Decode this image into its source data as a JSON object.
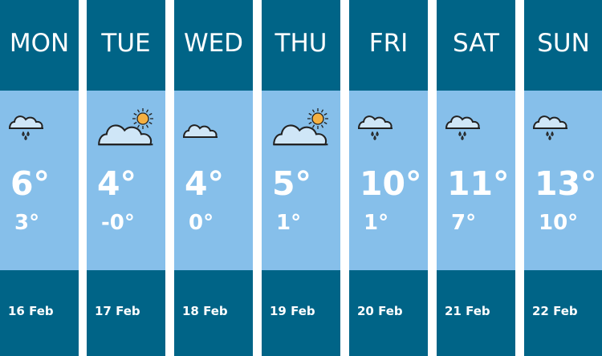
{
  "colors": {
    "header": "#006487",
    "body": "#86bfea",
    "text": "#ffffff",
    "sun": "#f5b041"
  },
  "days": [
    {
      "day": "MON",
      "icon": "rain-cloud-icon",
      "high": "6°",
      "low": "3°",
      "date": "16 Feb"
    },
    {
      "day": "TUE",
      "icon": "partly-cloudy-icon",
      "high": "4°",
      "low": "-0°",
      "date": "17 Feb"
    },
    {
      "day": "WED",
      "icon": "cloud-icon",
      "high": "4°",
      "low": "0°",
      "date": "18 Feb"
    },
    {
      "day": "THU",
      "icon": "partly-cloudy-icon",
      "high": "5°",
      "low": "1°",
      "date": "19 Feb"
    },
    {
      "day": "FRI",
      "icon": "rain-cloud-icon",
      "high": "10°",
      "low": "1°",
      "date": "20 Feb"
    },
    {
      "day": "SAT",
      "icon": "rain-cloud-icon",
      "high": "11°",
      "low": "7°",
      "date": "21 Feb"
    },
    {
      "day": "SUN",
      "icon": "rain-cloud-icon",
      "high": "13°",
      "low": "10°",
      "date": "22 Feb"
    }
  ]
}
